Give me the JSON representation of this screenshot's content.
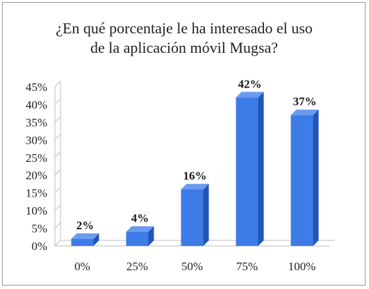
{
  "chart_data": {
    "type": "bar",
    "title_lines": [
      "¿En qué porcentaje le ha interesado el uso",
      "de la aplicación móvil Mugsa?"
    ],
    "categories": [
      "0%",
      "25%",
      "50%",
      "75%",
      "100%"
    ],
    "values": [
      2,
      4,
      16,
      42,
      37
    ],
    "data_labels": [
      "2%",
      "4%",
      "16%",
      "42%",
      "37%"
    ],
    "y_ticks": [
      "0%",
      "5%",
      "10%",
      "15%",
      "20%",
      "25%",
      "30%",
      "35%",
      "40%",
      "45%"
    ],
    "ylim": [
      0,
      45
    ],
    "grid": false,
    "style": "3d-columns",
    "colors": {
      "front": "#3d7be6",
      "side": "#2156b8",
      "top": "#6a9bf0",
      "axis": "#bdbdbd"
    }
  }
}
